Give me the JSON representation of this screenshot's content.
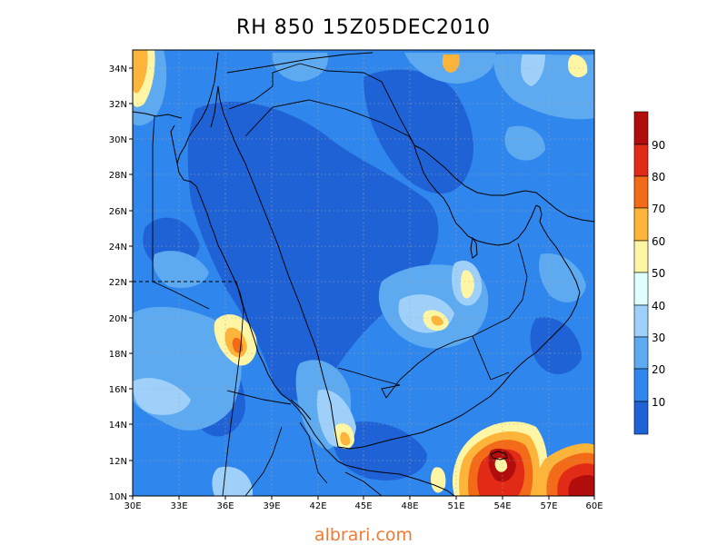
{
  "title": "RH 850  15Z05DEC2010",
  "footer": "albrari.com",
  "map": {
    "lon_ticks": [
      "30E",
      "33E",
      "36E",
      "39E",
      "42E",
      "45E",
      "48E",
      "51E",
      "54E",
      "57E",
      "60E"
    ],
    "lat_ticks": [
      "10N",
      "12N",
      "14N",
      "16N",
      "18N",
      "20N",
      "22N",
      "24N",
      "26N",
      "28N",
      "30N",
      "32N",
      "34N"
    ],
    "lon_range": [
      30,
      60
    ],
    "lat_range": [
      10,
      35
    ]
  },
  "colorbar": {
    "labels": [
      "10",
      "20",
      "30",
      "40",
      "50",
      "60",
      "70",
      "80",
      "90"
    ],
    "colors": [
      "#1f62d6",
      "#2f86ec",
      "#5eaaf0",
      "#9fd0fa",
      "#e0ffff",
      "#fff6a5",
      "#fdb43a",
      "#f36a18",
      "#e12b16",
      "#b10d0d"
    ]
  }
}
